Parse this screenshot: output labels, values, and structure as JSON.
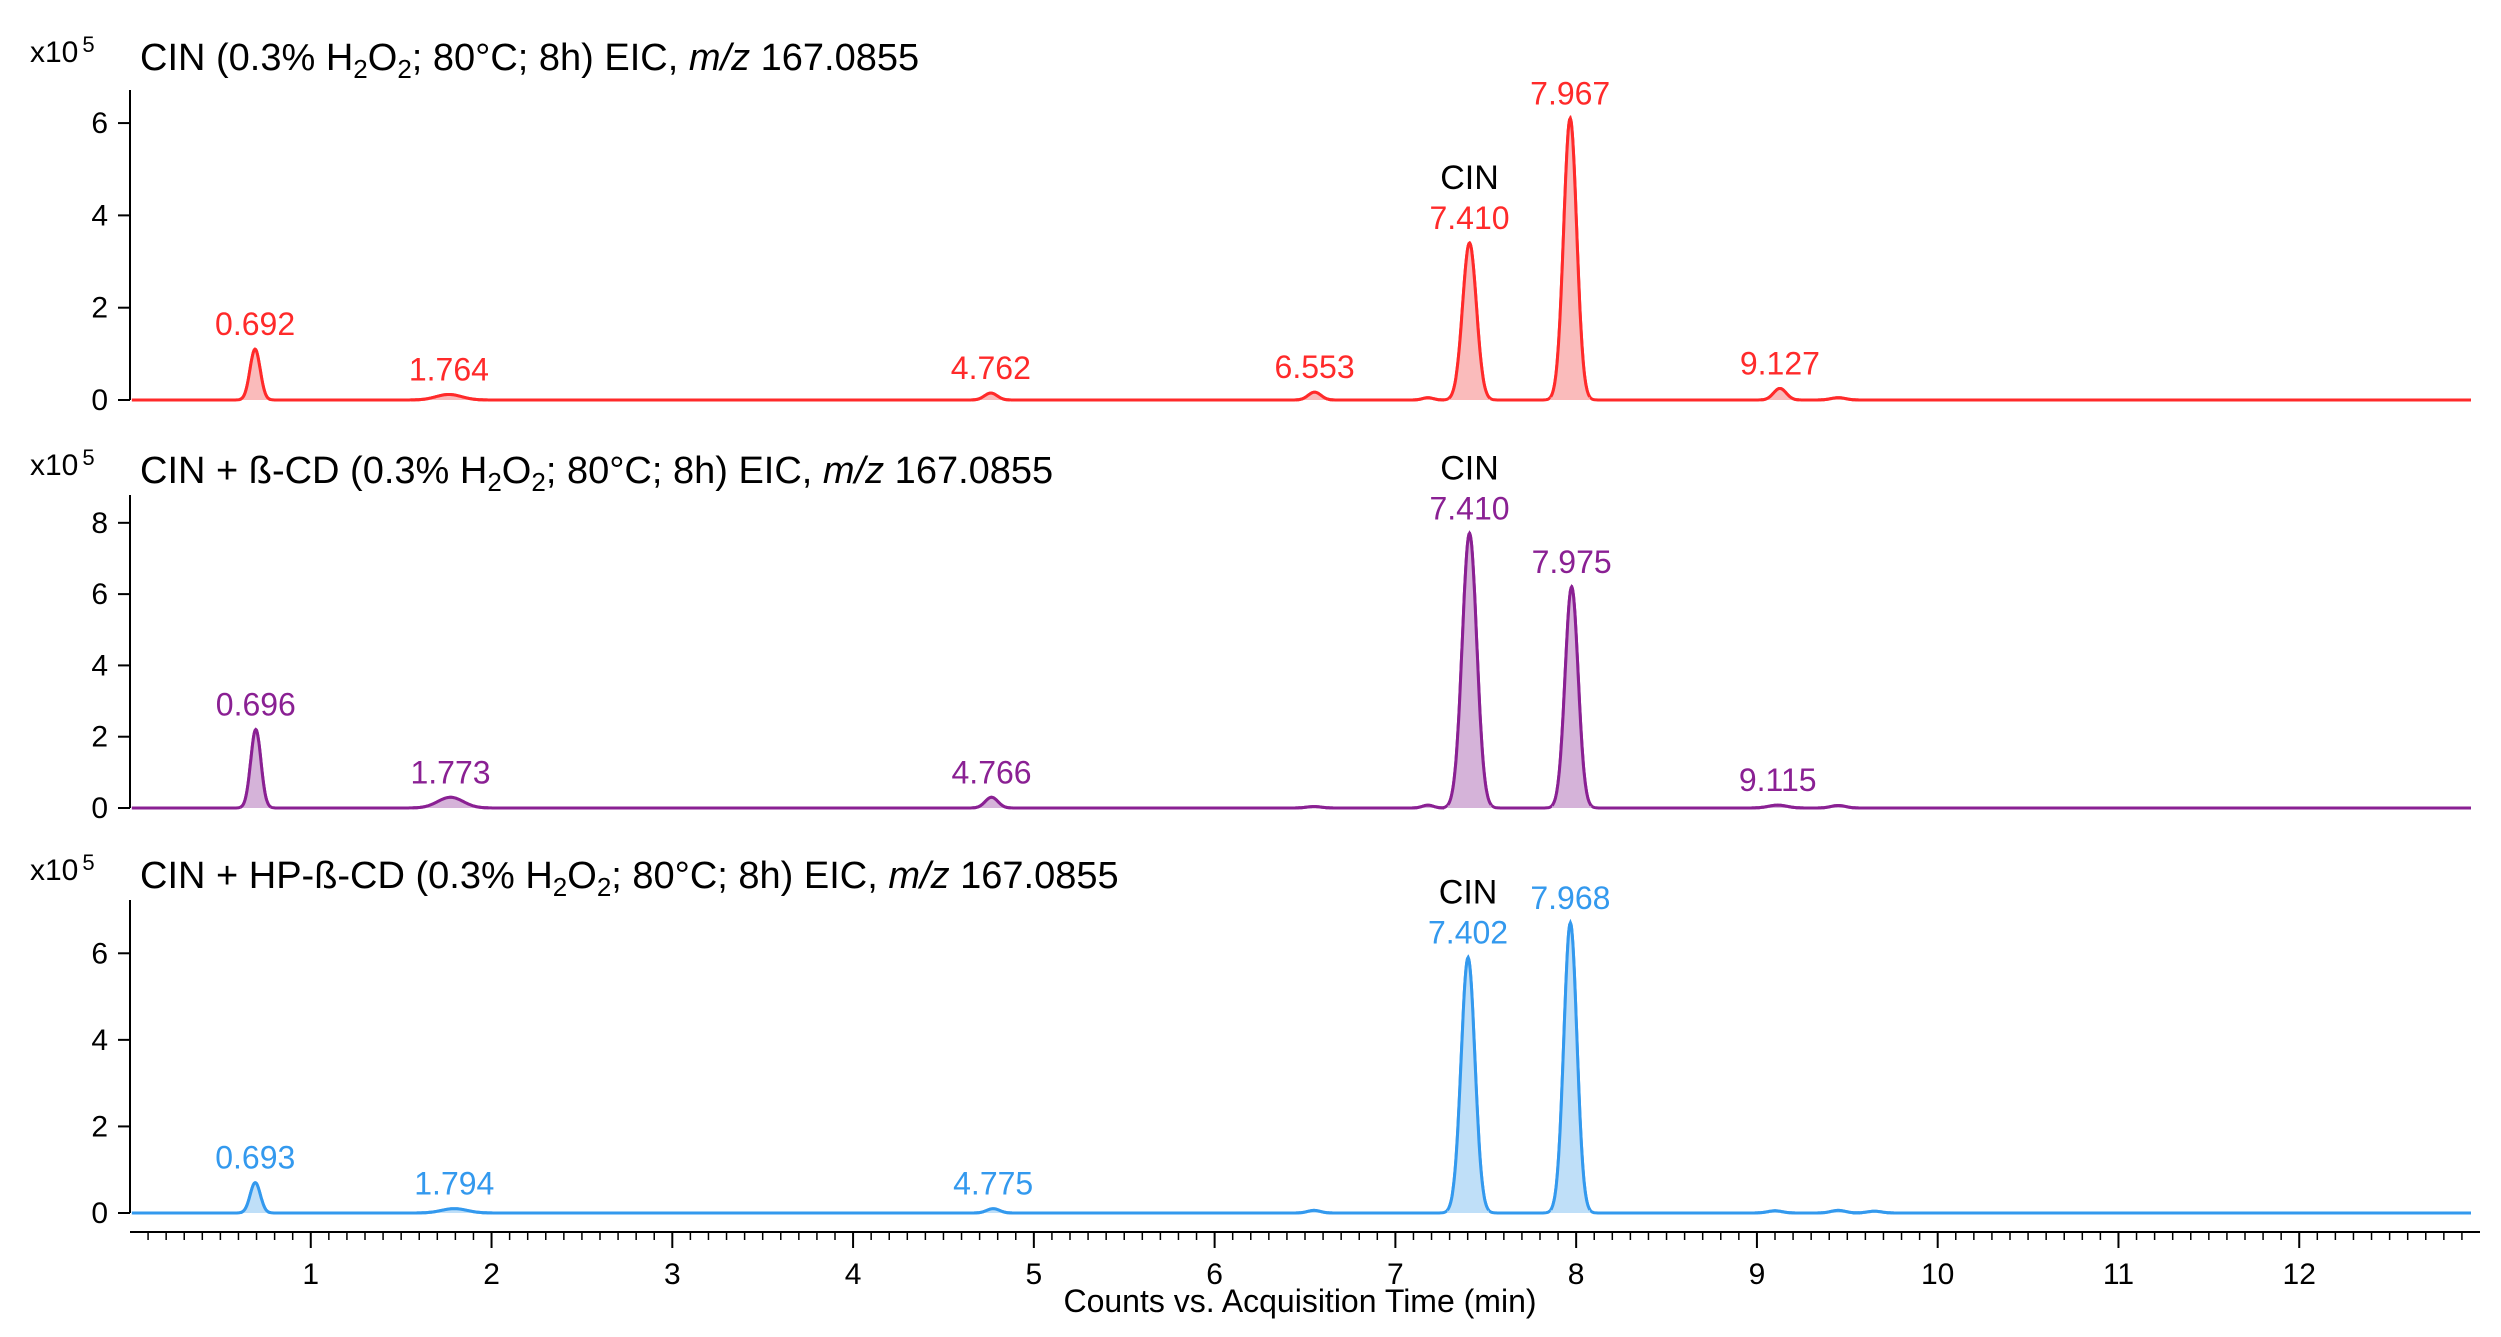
{
  "chart_data": {
    "type": "line",
    "xlabel": "Counts vs. Acquisition Time (min)",
    "xlim": [
      0,
      13
    ],
    "xticks": [
      1,
      2,
      3,
      4,
      5,
      6,
      7,
      8,
      9,
      10,
      11,
      12
    ],
    "panels": [
      {
        "name": "CIN",
        "title_prefix": "CIN (0.3% H",
        "title_mid": "O",
        "title_after_ox": "; 80°C; 8h) EIC, ",
        "title_mz": "m/z",
        "title_mass": " 167.0855",
        "sub_h": "2",
        "sub_o": "2",
        "scale_base": "x10",
        "scale_exp": "5",
        "color": "#ff2a2a",
        "fill": "#f9b4b4",
        "ylim": [
          0,
          6.5
        ],
        "yticks": [
          0,
          2,
          4,
          6
        ],
        "peaks": [
          {
            "rt": 0.692,
            "height": 1.1,
            "width": 0.028,
            "label": "0.692"
          },
          {
            "rt": 1.764,
            "height": 0.12,
            "width": 0.07,
            "label": "1.764"
          },
          {
            "rt": 4.762,
            "height": 0.15,
            "width": 0.035,
            "label": "4.762"
          },
          {
            "rt": 6.553,
            "height": 0.17,
            "width": 0.035,
            "label": "6.553"
          },
          {
            "rt": 7.18,
            "height": 0.05,
            "width": 0.03,
            "label": ""
          },
          {
            "rt": 7.41,
            "height": 3.4,
            "width": 0.038,
            "label": "7.410",
            "annotation": "CIN"
          },
          {
            "rt": 7.967,
            "height": 6.1,
            "width": 0.036,
            "label": "7.967"
          },
          {
            "rt": 9.127,
            "height": 0.25,
            "width": 0.035,
            "label": "9.127"
          },
          {
            "rt": 9.45,
            "height": 0.05,
            "width": 0.04,
            "label": ""
          }
        ]
      },
      {
        "name": "CIN + ß-CD",
        "title_prefix": "CIN + ß-CD (0.3% H",
        "title_mid": "O",
        "title_after_ox": "; 80°C; 8h) EIC, ",
        "title_mz": "m/z",
        "title_mass": " 167.0855",
        "sub_h": "2",
        "sub_o": "2",
        "scale_base": "x10",
        "scale_exp": "5",
        "color": "#8a2093",
        "fill": "#d0abd5",
        "ylim": [
          0,
          8.5
        ],
        "yticks": [
          0,
          2,
          4,
          6,
          8
        ],
        "peaks": [
          {
            "rt": 0.696,
            "height": 2.2,
            "width": 0.028,
            "label": "0.696"
          },
          {
            "rt": 1.773,
            "height": 0.3,
            "width": 0.07,
            "label": "1.773"
          },
          {
            "rt": 4.766,
            "height": 0.3,
            "width": 0.035,
            "label": "4.766"
          },
          {
            "rt": 6.55,
            "height": 0.04,
            "width": 0.04,
            "label": ""
          },
          {
            "rt": 7.18,
            "height": 0.08,
            "width": 0.03,
            "label": ""
          },
          {
            "rt": 7.41,
            "height": 7.7,
            "width": 0.04,
            "label": "7.410",
            "annotation": "CIN"
          },
          {
            "rt": 7.975,
            "height": 6.2,
            "width": 0.036,
            "label": "7.975"
          },
          {
            "rt": 9.115,
            "height": 0.08,
            "width": 0.05,
            "label": "9.115"
          },
          {
            "rt": 9.45,
            "height": 0.07,
            "width": 0.04,
            "label": ""
          }
        ]
      },
      {
        "name": "CIN + HP-ß-CD",
        "title_prefix": "CIN + HP-ß-CD (0.3% H",
        "title_mid": "O",
        "title_after_ox": "; 80°C; 8h) EIC, ",
        "title_mz": "m/z",
        "title_mass": " 167.0855",
        "sub_h": "2",
        "sub_o": "2",
        "scale_base": "x10",
        "scale_exp": "5",
        "color": "#3399ee",
        "fill": "#b8dcf7",
        "ylim": [
          0,
          7.0
        ],
        "yticks": [
          0,
          2,
          4,
          6
        ],
        "peaks": [
          {
            "rt": 0.693,
            "height": 0.7,
            "width": 0.028,
            "label": "0.693"
          },
          {
            "rt": 1.794,
            "height": 0.1,
            "width": 0.07,
            "label": "1.794"
          },
          {
            "rt": 4.775,
            "height": 0.1,
            "width": 0.035,
            "label": "4.775"
          },
          {
            "rt": 6.55,
            "height": 0.06,
            "width": 0.035,
            "label": ""
          },
          {
            "rt": 7.402,
            "height": 5.9,
            "width": 0.038,
            "label": "7.402",
            "annotation": "CIN"
          },
          {
            "rt": 7.968,
            "height": 6.7,
            "width": 0.036,
            "label": "7.968"
          },
          {
            "rt": 9.1,
            "height": 0.05,
            "width": 0.04,
            "label": ""
          },
          {
            "rt": 9.45,
            "height": 0.06,
            "width": 0.04,
            "label": ""
          },
          {
            "rt": 9.65,
            "height": 0.04,
            "width": 0.04,
            "label": ""
          }
        ]
      }
    ]
  }
}
